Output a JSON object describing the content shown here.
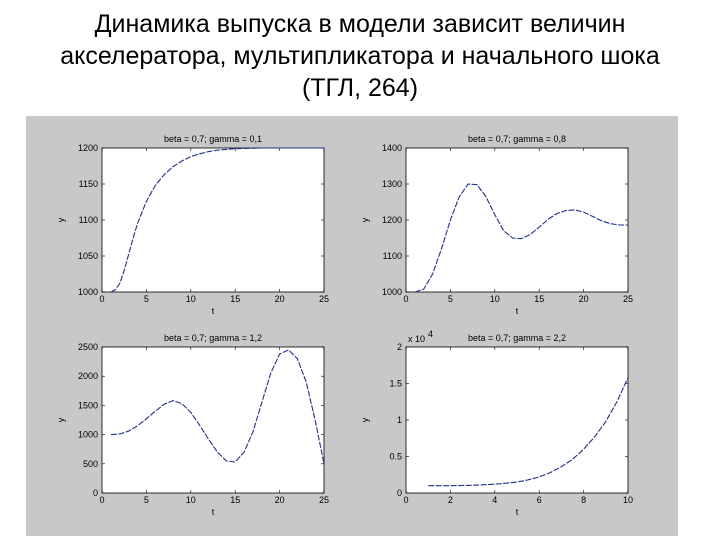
{
  "slide": {
    "title_lines": [
      "Динамика выпуска в модели зависит величин",
      "акселератора, мультипликатора и начального шока",
      "(ТГЛ, 264)"
    ]
  },
  "colors": {
    "figure_bg": "#c8c8c8",
    "axes_bg": "#ffffff",
    "line": "#1f2f8f"
  },
  "chart_data": [
    {
      "type": "line",
      "title": "beta = 0,7; gamma = 0,1",
      "xlabel": "t",
      "ylabel": "y",
      "xlim": [
        0,
        25
      ],
      "ylim": [
        1000,
        1200
      ],
      "xticks": [
        0,
        5,
        10,
        15,
        20,
        25
      ],
      "yticks": [
        1000,
        1050,
        1100,
        1150,
        1200
      ],
      "grid": false,
      "series": [
        {
          "x": [
            1,
            1.5,
            2,
            2.5,
            3,
            3.5,
            4,
            5,
            6,
            7,
            8,
            9,
            10,
            11,
            12,
            13,
            14,
            15,
            16,
            18,
            20,
            22,
            25
          ],
          "y": [
            1000,
            1003,
            1012,
            1030,
            1052,
            1075,
            1095,
            1126,
            1148,
            1163,
            1174,
            1182,
            1188,
            1192,
            1195,
            1197,
            1198,
            1199,
            1199.5,
            1200,
            1200,
            1200,
            1200
          ]
        }
      ]
    },
    {
      "type": "line",
      "title": "beta = 0,7; gamma = 0,8",
      "xlabel": "t",
      "ylabel": "y",
      "xlim": [
        0,
        25
      ],
      "ylim": [
        1000,
        1400
      ],
      "xticks": [
        0,
        5,
        10,
        15,
        20,
        25
      ],
      "yticks": [
        1000,
        1100,
        1200,
        1300,
        1400
      ],
      "grid": false,
      "series": [
        {
          "x": [
            1,
            2,
            3,
            4,
            5,
            6,
            7,
            8,
            9,
            10,
            11,
            12,
            13,
            14,
            15,
            16,
            17,
            18,
            19,
            20,
            21,
            22,
            23,
            24,
            25
          ],
          "y": [
            1000,
            1008,
            1050,
            1120,
            1200,
            1265,
            1300,
            1298,
            1265,
            1215,
            1170,
            1150,
            1148,
            1160,
            1180,
            1202,
            1218,
            1226,
            1228,
            1222,
            1210,
            1198,
            1190,
            1186,
            1186
          ]
        }
      ]
    },
    {
      "type": "line",
      "title": "beta = 0,7; gamma = 1,2",
      "xlabel": "t",
      "ylabel": "y",
      "xlim": [
        0,
        25
      ],
      "ylim": [
        0,
        2500
      ],
      "xticks": [
        0,
        5,
        10,
        15,
        20,
        25
      ],
      "yticks": [
        0,
        500,
        1000,
        1500,
        2000,
        2500
      ],
      "grid": false,
      "series": [
        {
          "x": [
            1,
            2,
            3,
            4,
            5,
            6,
            7,
            8,
            9,
            10,
            11,
            12,
            13,
            14,
            15,
            16,
            17,
            18,
            19,
            20,
            21,
            22,
            23,
            24,
            25
          ],
          "y": [
            1000,
            1010,
            1060,
            1150,
            1270,
            1400,
            1520,
            1580,
            1530,
            1380,
            1160,
            920,
            700,
            550,
            530,
            700,
            1050,
            1550,
            2050,
            2380,
            2450,
            2300,
            1900,
            1250,
            500
          ]
        }
      ]
    },
    {
      "type": "line",
      "title": "beta = 0,7; gamma = 2,2",
      "xlabel": "t",
      "ylabel": "y",
      "scale_label": "x 10",
      "scale_exponent": "4",
      "xlim": [
        0,
        10
      ],
      "ylim": [
        0,
        2
      ],
      "xticks": [
        0,
        2,
        4,
        6,
        8,
        10
      ],
      "yticks": [
        0,
        0.5,
        1,
        1.5,
        2
      ],
      "ytick_labels": [
        "0",
        "0.5",
        "1",
        "1.5",
        "2"
      ],
      "grid": false,
      "series": [
        {
          "x": [
            1,
            2,
            3,
            4,
            5,
            5.5,
            6,
            6.5,
            7,
            7.5,
            8,
            8.5,
            9,
            9.5,
            10
          ],
          "y": [
            0.1,
            0.1,
            0.105,
            0.12,
            0.15,
            0.18,
            0.22,
            0.28,
            0.36,
            0.46,
            0.6,
            0.77,
            0.98,
            1.25,
            1.58
          ]
        }
      ]
    }
  ]
}
